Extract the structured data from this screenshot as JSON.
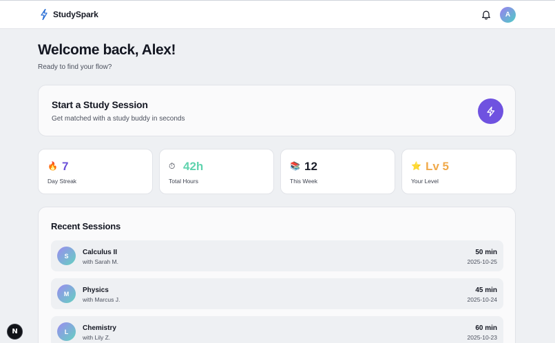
{
  "header": {
    "brand": "StudySpark",
    "user_initial": "A"
  },
  "welcome": {
    "title": "Welcome back, Alex!",
    "subtitle": "Ready to find your flow?"
  },
  "start_session": {
    "title": "Start a Study Session",
    "subtitle": "Get matched with a study buddy in seconds"
  },
  "stats": [
    {
      "icon": "🔥",
      "icon_name": "fire-icon",
      "value": "7",
      "label": "Day Streak",
      "color": "#6a4fd9"
    },
    {
      "icon": "⏱",
      "icon_name": "stopwatch-icon",
      "value": "42h",
      "label": "Total Hours",
      "color": "#5fd3ae"
    },
    {
      "icon": "📚",
      "icon_name": "books-icon",
      "value": "12",
      "label": "This Week",
      "color": "#1a1d28"
    },
    {
      "icon": "⭐",
      "icon_name": "star-icon",
      "value": "Lv 5",
      "label": "Your Level",
      "color": "#f0a94a"
    }
  ],
  "recent": {
    "title": "Recent Sessions",
    "items": [
      {
        "initial": "S",
        "subject": "Calculus II",
        "partner": "with Sarah M.",
        "duration": "50 min",
        "date": "2025-10-25"
      },
      {
        "initial": "M",
        "subject": "Physics",
        "partner": "with Marcus J.",
        "duration": "45 min",
        "date": "2025-10-24"
      },
      {
        "initial": "L",
        "subject": "Chemistry",
        "partner": "with Lily Z.",
        "duration": "60 min",
        "date": "2025-10-23"
      }
    ]
  },
  "dev_badge": "N",
  "colors": {
    "accent": "#6f52e0",
    "background": "#eef0f3"
  }
}
